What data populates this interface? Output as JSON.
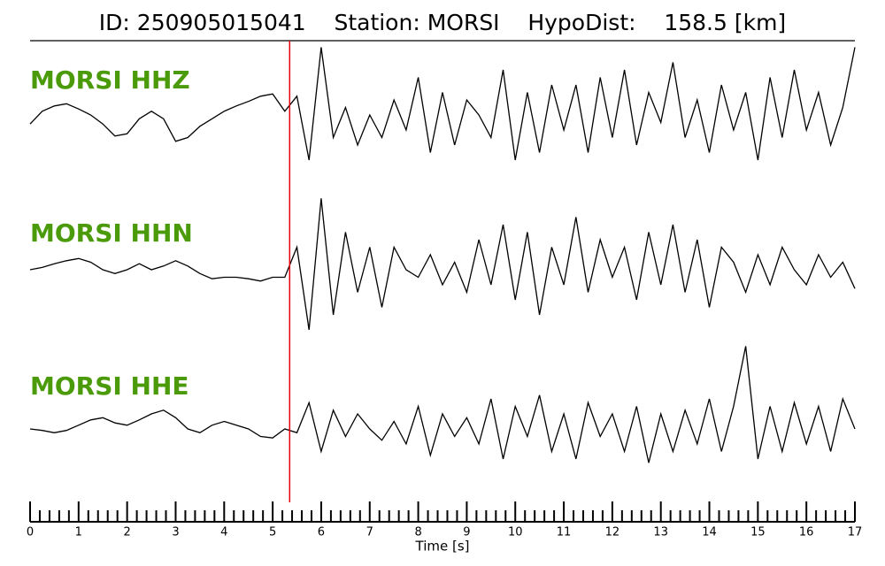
{
  "chart_data": {
    "type": "seismogram",
    "title": "ID: 250905015041    Station: MORSI    HypoDist:    158.5 [km]",
    "xlabel": "Time [s]",
    "xlim": [
      0,
      17
    ],
    "xticks": [
      0,
      1,
      2,
      3,
      4,
      5,
      6,
      7,
      8,
      9,
      10,
      11,
      12,
      13,
      14,
      15,
      16,
      17
    ],
    "x_minor_per_major": 5,
    "marker_x": 5.35,
    "marker_color": "#e8000b",
    "label_color": "#4a9a0a",
    "x": [
      0,
      0.25,
      0.5,
      0.75,
      1,
      1.25,
      1.5,
      1.75,
      2,
      2.25,
      2.5,
      2.75,
      3,
      3.25,
      3.5,
      3.75,
      4,
      4.25,
      4.5,
      4.75,
      5,
      5.25,
      5.5,
      5.75,
      6,
      6.25,
      6.5,
      6.75,
      7,
      7.25,
      7.5,
      7.75,
      8,
      8.25,
      8.5,
      8.75,
      9,
      9.25,
      9.5,
      9.75,
      10,
      10.25,
      10.5,
      10.75,
      11,
      11.25,
      11.5,
      11.75,
      12,
      12.25,
      12.5,
      12.75,
      13,
      13.25,
      13.5,
      13.75,
      14,
      14.25,
      14.5,
      14.75,
      15,
      15.25,
      15.5,
      15.75,
      16,
      16.25,
      16.5,
      16.75,
      17
    ],
    "series": [
      {
        "name": "MORSI HHZ",
        "color": "#000000",
        "values": [
          -0.12,
          0.05,
          0.12,
          0.15,
          0.08,
          0.0,
          -0.12,
          -0.28,
          -0.25,
          -0.05,
          0.05,
          -0.05,
          -0.35,
          -0.3,
          -0.15,
          -0.05,
          0.05,
          0.12,
          0.18,
          0.25,
          0.28,
          0.05,
          0.25,
          -0.6,
          0.9,
          -0.3,
          0.1,
          -0.4,
          0.0,
          -0.3,
          0.2,
          -0.2,
          0.5,
          -0.5,
          0.3,
          -0.4,
          0.2,
          0.0,
          -0.3,
          0.6,
          -0.6,
          0.3,
          -0.5,
          0.4,
          -0.2,
          0.4,
          -0.5,
          0.5,
          -0.3,
          0.6,
          -0.4,
          0.3,
          -0.1,
          0.7,
          -0.3,
          0.2,
          -0.5,
          0.4,
          -0.2,
          0.3,
          -0.6,
          0.5,
          -0.3,
          0.6,
          -0.2,
          0.3,
          -0.4,
          0.1,
          0.9
        ]
      },
      {
        "name": "MORSI HHN",
        "color": "#000000",
        "values": [
          0.0,
          0.03,
          0.08,
          0.12,
          0.15,
          0.1,
          0.0,
          -0.05,
          0.0,
          0.08,
          0.0,
          0.05,
          0.12,
          0.05,
          -0.05,
          -0.12,
          -0.1,
          -0.1,
          -0.12,
          -0.15,
          -0.1,
          -0.1,
          0.3,
          -0.8,
          0.95,
          -0.6,
          0.5,
          -0.3,
          0.3,
          -0.5,
          0.3,
          0.0,
          -0.1,
          0.2,
          -0.2,
          0.1,
          -0.3,
          0.4,
          -0.2,
          0.6,
          -0.4,
          0.5,
          -0.6,
          0.3,
          -0.2,
          0.7,
          -0.3,
          0.4,
          -0.1,
          0.3,
          -0.4,
          0.5,
          -0.2,
          0.6,
          -0.3,
          0.4,
          -0.5,
          0.3,
          0.1,
          -0.3,
          0.2,
          -0.2,
          0.3,
          0.0,
          -0.2,
          0.2,
          -0.1,
          0.1,
          -0.25
        ]
      },
      {
        "name": "MORSI HHE",
        "color": "#000000",
        "values": [
          0.0,
          -0.02,
          -0.05,
          -0.02,
          0.05,
          0.12,
          0.15,
          0.08,
          0.05,
          0.12,
          0.2,
          0.25,
          0.15,
          0.0,
          -0.05,
          0.05,
          0.1,
          0.05,
          0.0,
          -0.1,
          -0.12,
          0.0,
          -0.05,
          0.35,
          -0.3,
          0.25,
          -0.1,
          0.2,
          0.0,
          -0.15,
          0.1,
          -0.2,
          0.3,
          -0.35,
          0.2,
          -0.1,
          0.15,
          -0.2,
          0.4,
          -0.4,
          0.3,
          -0.1,
          0.45,
          -0.3,
          0.2,
          -0.4,
          0.35,
          -0.1,
          0.2,
          -0.3,
          0.3,
          -0.45,
          0.2,
          -0.3,
          0.25,
          -0.2,
          0.4,
          -0.3,
          0.3,
          1.1,
          -0.4,
          0.3,
          -0.3,
          0.35,
          -0.2,
          0.3,
          -0.3,
          0.4,
          0.0
        ]
      }
    ]
  }
}
